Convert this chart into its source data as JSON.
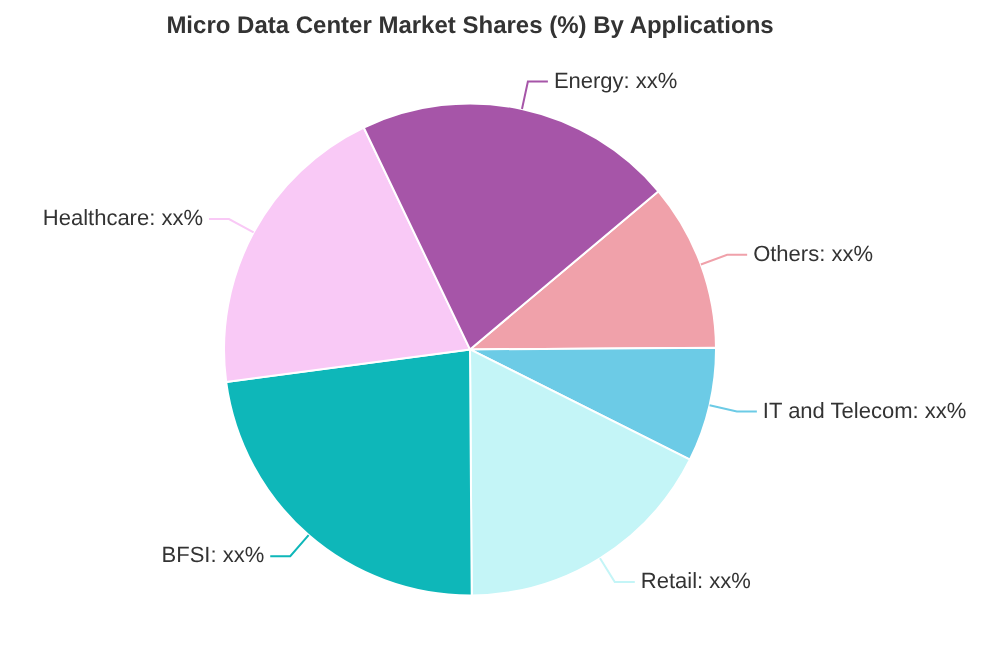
{
  "chart_data": {
    "type": "pie",
    "title": "Micro Data Center Market Shares (%) By Applications",
    "categories": [
      "Others",
      "IT and Telecom",
      "Retail",
      "BFSI",
      "Healthcare",
      "Energy"
    ],
    "values": [
      11,
      7.5,
      17.5,
      23,
      20,
      21
    ],
    "value_labels": [
      "xx%",
      "xx%",
      "xx%",
      "xx%",
      "xx%",
      "xx%"
    ],
    "colors": [
      "#f0a1aa",
      "#6ccbe6",
      "#c4f5f7",
      "#0eb7b9",
      "#f9c9f6",
      "#a655a8"
    ],
    "legend": false
  }
}
